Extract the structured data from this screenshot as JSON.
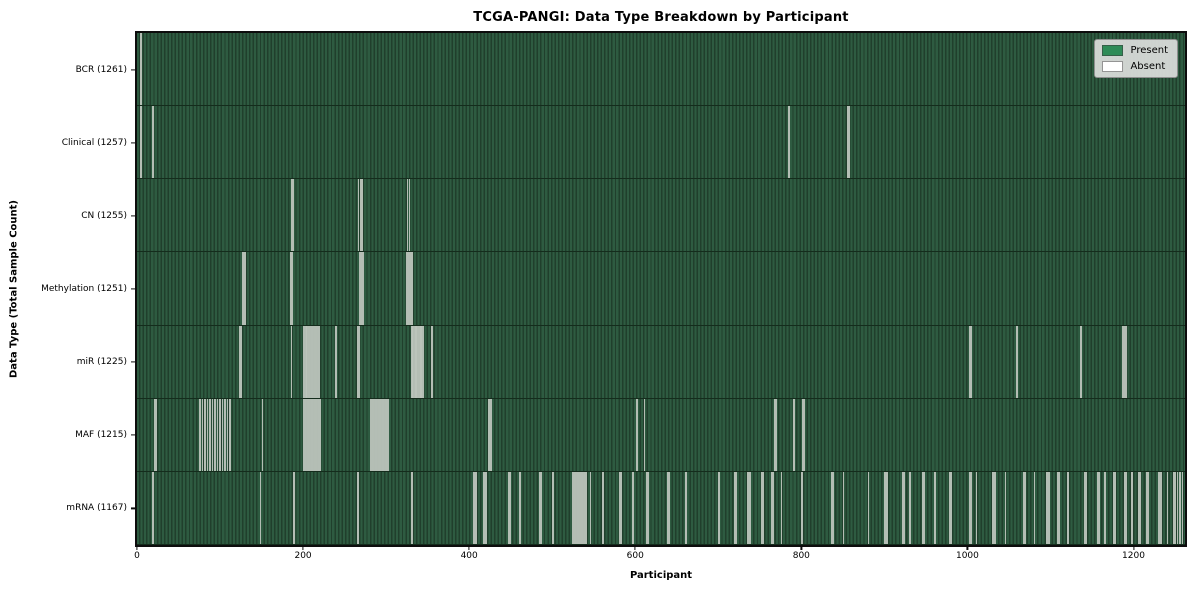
{
  "figure": {
    "title": "TCGA-PANGI: Data Type Breakdown by Participant",
    "xlabel": "Participant",
    "ylabel": "Data Type (Total Sample Count)"
  },
  "legend": {
    "items": [
      {
        "label": "Present",
        "color": "#2e8b57"
      },
      {
        "label": "Absent",
        "color": "#ffffff"
      }
    ]
  },
  "colors": {
    "present_stripe_light": "#2e5b41",
    "present_stripe_dark": "#203f2c",
    "absent_line": "#bcc4bc",
    "legend_background": "#dbdedb",
    "axis_spine": "#0d0d0d"
  },
  "chart_data": {
    "type": "heatmap",
    "title": "TCGA-PANGI: Data Type Breakdown by Participant",
    "xlabel": "Participant",
    "ylabel": "Data Type (Total Sample Count)",
    "legend": [
      "Present",
      "Absent"
    ],
    "grid": false,
    "legend_position": "upper right",
    "x_ticks": [
      0,
      200,
      400,
      600,
      800,
      1000,
      1200
    ],
    "x_range": [
      0,
      1262
    ],
    "total_participants": 1262,
    "rows": [
      {
        "label": "BCR (1261)",
        "data_type": "BCR",
        "present_count": 1261,
        "absent_count": 1,
        "absent_positions_approx": [
          4
        ]
      },
      {
        "label": "Clinical (1257)",
        "data_type": "Clinical",
        "present_count": 1257,
        "absent_count": 5,
        "absent_positions_approx": [
          4,
          18,
          784,
          855,
          857
        ]
      },
      {
        "label": "CN (1255)",
        "data_type": "CN",
        "present_count": 1255,
        "absent_count": 7,
        "absent_positions_approx": [
          185,
          187,
          266,
          268,
          270,
          325,
          327
        ]
      },
      {
        "label": "Methylation (1251)",
        "data_type": "Methylation",
        "present_count": 1251,
        "absent_count": 11,
        "absent_positions_approx": [
          127,
          129,
          184,
          186,
          267,
          269,
          271,
          324,
          326,
          328,
          330
        ]
      },
      {
        "label": "miR (1225)",
        "data_type": "miR",
        "present_count": 1225,
        "absent_count": 37,
        "absent_positions_approx": [
          123,
          125,
          185,
          200,
          202,
          203,
          204,
          206,
          208,
          210,
          212,
          214,
          216,
          218,
          239,
          265,
          267,
          330,
          331,
          332,
          334,
          335,
          336,
          338,
          340,
          341,
          342,
          344,
          354,
          1002,
          1004,
          1059,
          1136,
          1186,
          1187,
          1188,
          1190
        ]
      },
      {
        "label": "MAF (1215)",
        "data_type": "MAF",
        "present_count": 1215,
        "absent_count": 47,
        "absent_positions_approx": [
          20,
          22,
          75,
          78,
          81,
          84,
          87,
          90,
          93,
          96,
          99,
          102,
          105,
          108,
          111,
          150,
          200,
          202,
          204,
          206,
          208,
          210,
          212,
          214,
          216,
          218,
          220,
          281,
          283,
          285,
          287,
          289,
          291,
          293,
          295,
          297,
          299,
          301,
          423,
          425,
          601,
          610,
          767,
          769,
          790,
          801,
          803
        ]
      },
      {
        "label": "mRNA (1167)",
        "data_type": "mRNA",
        "present_count": 1167,
        "absent_count": 95,
        "absent_positions_approx": [
          18,
          148,
          188,
          265,
          330,
          405,
          407,
          417,
          419,
          447,
          449,
          460,
          484,
          486,
          500,
          524,
          526,
          528,
          530,
          532,
          534,
          536,
          538,
          540,
          545,
          560,
          580,
          582,
          596,
          613,
          615,
          638,
          640,
          660,
          700,
          719,
          721,
          735,
          737,
          751,
          753,
          763,
          765,
          775,
          800,
          836,
          838,
          850,
          880,
          900,
          902,
          921,
          923,
          930,
          945,
          947,
          960,
          978,
          980,
          1002,
          1004,
          1010,
          1030,
          1032,
          1045,
          1067,
          1069,
          1080,
          1095,
          1097,
          1108,
          1110,
          1120,
          1140,
          1142,
          1156,
          1158,
          1165,
          1175,
          1177,
          1188,
          1190,
          1197,
          1205,
          1207,
          1215,
          1217,
          1230,
          1232,
          1240,
          1247,
          1249,
          1252,
          1255,
          1258
        ]
      }
    ]
  }
}
